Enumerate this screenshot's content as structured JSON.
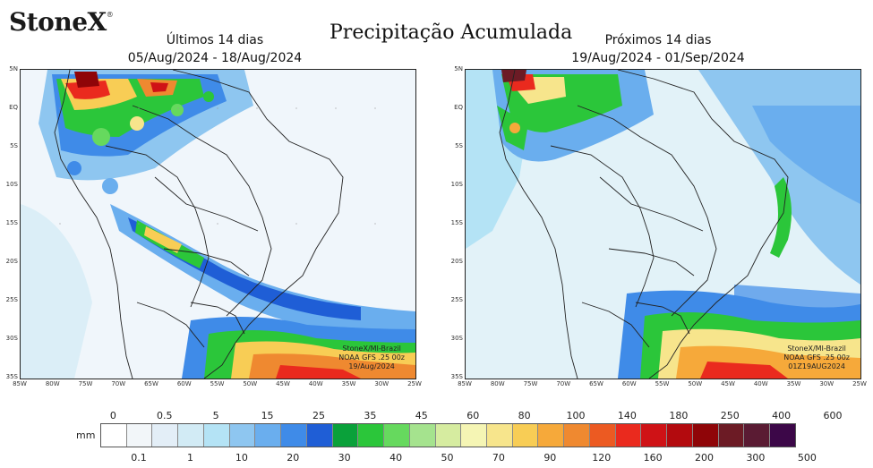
{
  "header": {
    "logo_text": "StoneX",
    "logo_mark": "®",
    "title": "Precipitação Acumulada"
  },
  "panels": [
    {
      "period_label": "Últimos 14 dias",
      "date_range": "05/Aug/2024 - 18/Aug/2024",
      "credit_lines": [
        "StoneX/MI-Brazil",
        "NOAA GFS .25 00z",
        "19/Aug/2024"
      ]
    },
    {
      "period_label": "Próximos 14 dias",
      "date_range": "19/Aug/2024 - 01/Sep/2024",
      "credit_lines": [
        "StoneX/MI-Brazil",
        "NOAA GFS .25 00z",
        "01Z19AUG2024"
      ]
    }
  ],
  "lat_ticks": [
    "5N",
    "EQ",
    "5S",
    "10S",
    "15S",
    "20S",
    "25S",
    "30S",
    "35S"
  ],
  "lon_ticks": [
    "85W",
    "80W",
    "75W",
    "70W",
    "65W",
    "60W",
    "55W",
    "50W",
    "45W",
    "40W",
    "35W",
    "30W",
    "25W"
  ],
  "legend": {
    "unit": "mm",
    "top_labels": [
      "0",
      "0.5",
      "5",
      "15",
      "25",
      "35",
      "45",
      "60",
      "80",
      "100",
      "140",
      "180",
      "250",
      "400",
      "600"
    ],
    "bottom_labels": [
      "0.1",
      "1",
      "10",
      "20",
      "30",
      "40",
      "50",
      "70",
      "90",
      "120",
      "160",
      "200",
      "300",
      "500"
    ],
    "colors": [
      "#ffffff",
      "#f2f6f9",
      "#e3eef7",
      "#d2ebf5",
      "#b4e3f5",
      "#8ec6f0",
      "#6aaeee",
      "#3f8be8",
      "#1f5ed6",
      "#0aa13a",
      "#2bc63a",
      "#66d95e",
      "#a5e38e",
      "#d6eca0",
      "#f5f5b4",
      "#f7e58c",
      "#f8cd55",
      "#f6a93a",
      "#ef8930",
      "#ec5a22",
      "#ea2a1e",
      "#cf1216",
      "#b30a0e",
      "#8f0508",
      "#6c1b25",
      "#5a1b33",
      "#3c0748"
    ]
  }
}
